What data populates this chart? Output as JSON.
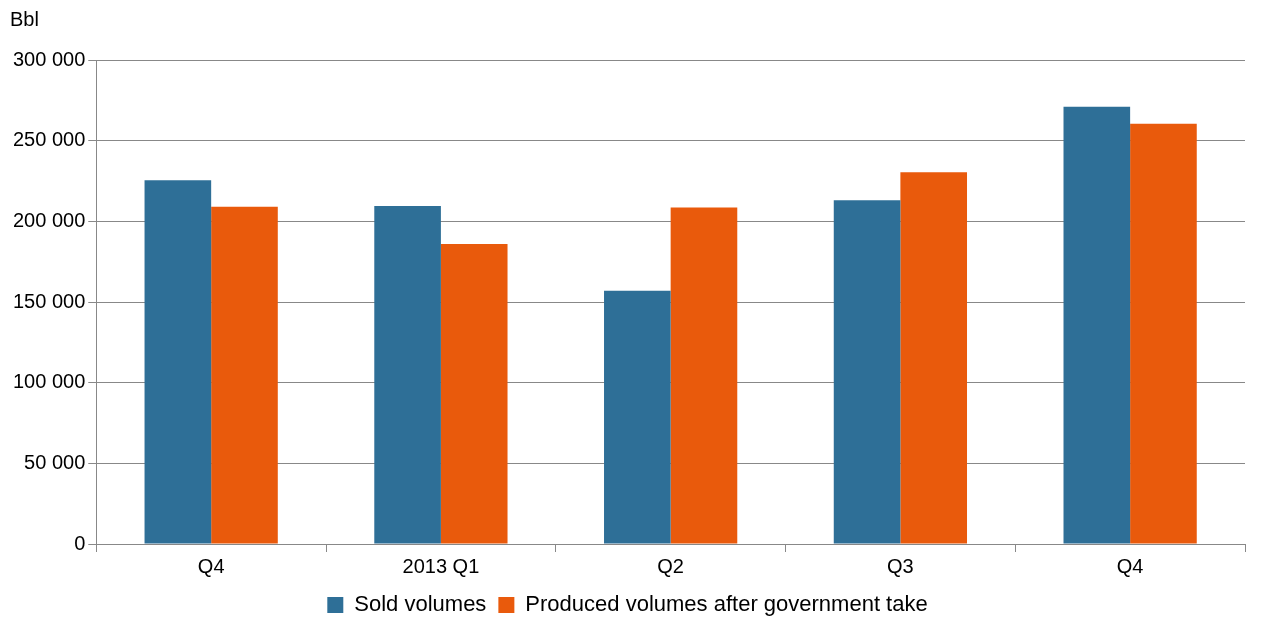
{
  "chart_data": {
    "type": "bar",
    "ylabel": "Bbl",
    "categories": [
      "Q4",
      "2013 Q1",
      "Q2",
      "Q3",
      "Q4"
    ],
    "series": [
      {
        "name": "Sold volumes",
        "color": "#2e6f97",
        "values": [
          225500,
          209500,
          157000,
          213000,
          271000
        ]
      },
      {
        "name": "Produced volumes after government take",
        "color": "#e95a0c",
        "values": [
          209000,
          186000,
          208500,
          230500,
          260500
        ]
      }
    ],
    "ylim": [
      0,
      300000
    ],
    "yticks": [
      0,
      {
        "value": 50000,
        "label": "50 000"
      },
      {
        "value": 100000,
        "label": "100 000"
      },
      {
        "value": 150000,
        "label": "150 000"
      },
      {
        "value": 200000,
        "label": "200 000"
      },
      {
        "value": 250000,
        "label": "250 000"
      },
      {
        "value": 300000,
        "label": "300 000"
      }
    ],
    "grid": "y",
    "legend": "bottom"
  }
}
